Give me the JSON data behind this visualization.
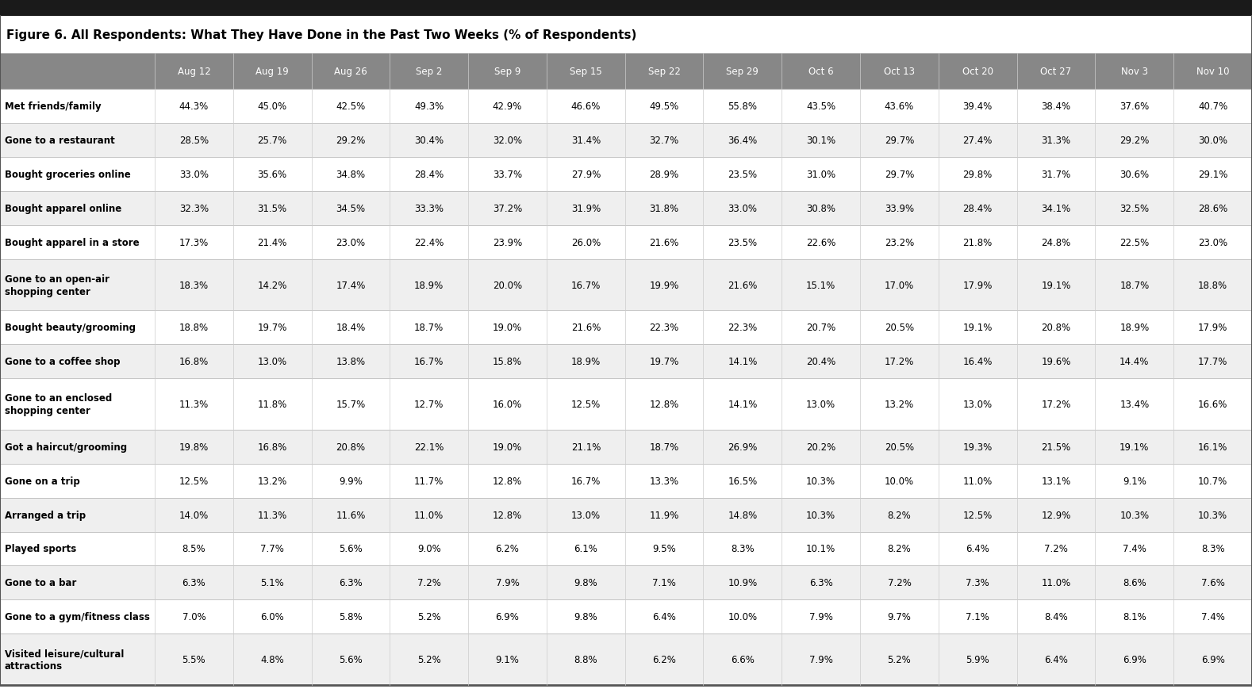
{
  "title": "Figure 6. All Respondents: What They Have Done in the Past Two Weeks (% of Respondents)",
  "columns": [
    "Aug 12",
    "Aug 19",
    "Aug 26",
    "Sep 2",
    "Sep 9",
    "Sep 15",
    "Sep 22",
    "Sep 29",
    "Oct 6",
    "Oct 13",
    "Oct 20",
    "Oct 27",
    "Nov 3",
    "Nov 10"
  ],
  "rows": [
    {
      "label": "Met friends/family",
      "label2": "",
      "values": [
        "44.3%",
        "45.0%",
        "42.5%",
        "49.3%",
        "42.9%",
        "46.6%",
        "49.5%",
        "55.8%",
        "43.5%",
        "43.6%",
        "39.4%",
        "38.4%",
        "37.6%",
        "40.7%"
      ]
    },
    {
      "label": "Gone to a restaurant",
      "label2": "",
      "values": [
        "28.5%",
        "25.7%",
        "29.2%",
        "30.4%",
        "32.0%",
        "31.4%",
        "32.7%",
        "36.4%",
        "30.1%",
        "29.7%",
        "27.4%",
        "31.3%",
        "29.2%",
        "30.0%"
      ]
    },
    {
      "label": "Bought groceries online",
      "label2": "",
      "values": [
        "33.0%",
        "35.6%",
        "34.8%",
        "28.4%",
        "33.7%",
        "27.9%",
        "28.9%",
        "23.5%",
        "31.0%",
        "29.7%",
        "29.8%",
        "31.7%",
        "30.6%",
        "29.1%"
      ]
    },
    {
      "label": "Bought apparel online",
      "label2": "",
      "values": [
        "32.3%",
        "31.5%",
        "34.5%",
        "33.3%",
        "37.2%",
        "31.9%",
        "31.8%",
        "33.0%",
        "30.8%",
        "33.9%",
        "28.4%",
        "34.1%",
        "32.5%",
        "28.6%"
      ]
    },
    {
      "label": "Bought apparel in a store",
      "label2": "",
      "values": [
        "17.3%",
        "21.4%",
        "23.0%",
        "22.4%",
        "23.9%",
        "26.0%",
        "21.6%",
        "23.5%",
        "22.6%",
        "23.2%",
        "21.8%",
        "24.8%",
        "22.5%",
        "23.0%"
      ]
    },
    {
      "label": "Gone to an open-air",
      "label2": "shopping center",
      "values": [
        "18.3%",
        "14.2%",
        "17.4%",
        "18.9%",
        "20.0%",
        "16.7%",
        "19.9%",
        "21.6%",
        "15.1%",
        "17.0%",
        "17.9%",
        "19.1%",
        "18.7%",
        "18.8%"
      ]
    },
    {
      "label": "Bought beauty/grooming",
      "label2": "",
      "values": [
        "18.8%",
        "19.7%",
        "18.4%",
        "18.7%",
        "19.0%",
        "21.6%",
        "22.3%",
        "22.3%",
        "20.7%",
        "20.5%",
        "19.1%",
        "20.8%",
        "18.9%",
        "17.9%"
      ]
    },
    {
      "label": "Gone to a coffee shop",
      "label2": "",
      "values": [
        "16.8%",
        "13.0%",
        "13.8%",
        "16.7%",
        "15.8%",
        "18.9%",
        "19.7%",
        "14.1%",
        "20.4%",
        "17.2%",
        "16.4%",
        "19.6%",
        "14.4%",
        "17.7%"
      ]
    },
    {
      "label": "Gone to an enclosed",
      "label2": "shopping center",
      "values": [
        "11.3%",
        "11.8%",
        "15.7%",
        "12.7%",
        "16.0%",
        "12.5%",
        "12.8%",
        "14.1%",
        "13.0%",
        "13.2%",
        "13.0%",
        "17.2%",
        "13.4%",
        "16.6%"
      ]
    },
    {
      "label": "Got a haircut/grooming",
      "label2": "",
      "values": [
        "19.8%",
        "16.8%",
        "20.8%",
        "22.1%",
        "19.0%",
        "21.1%",
        "18.7%",
        "26.9%",
        "20.2%",
        "20.5%",
        "19.3%",
        "21.5%",
        "19.1%",
        "16.1%"
      ]
    },
    {
      "label": "Gone on a trip",
      "label2": "",
      "values": [
        "12.5%",
        "13.2%",
        "9.9%",
        "11.7%",
        "12.8%",
        "16.7%",
        "13.3%",
        "16.5%",
        "10.3%",
        "10.0%",
        "11.0%",
        "13.1%",
        "9.1%",
        "10.7%"
      ]
    },
    {
      "label": "Arranged a trip",
      "label2": "",
      "values": [
        "14.0%",
        "11.3%",
        "11.6%",
        "11.0%",
        "12.8%",
        "13.0%",
        "11.9%",
        "14.8%",
        "10.3%",
        "8.2%",
        "12.5%",
        "12.9%",
        "10.3%",
        "10.3%"
      ]
    },
    {
      "label": "Played sports",
      "label2": "",
      "values": [
        "8.5%",
        "7.7%",
        "5.6%",
        "9.0%",
        "6.2%",
        "6.1%",
        "9.5%",
        "8.3%",
        "10.1%",
        "8.2%",
        "6.4%",
        "7.2%",
        "7.4%",
        "8.3%"
      ]
    },
    {
      "label": "Gone to a bar",
      "label2": "",
      "values": [
        "6.3%",
        "5.1%",
        "6.3%",
        "7.2%",
        "7.9%",
        "9.8%",
        "7.1%",
        "10.9%",
        "6.3%",
        "7.2%",
        "7.3%",
        "11.0%",
        "8.6%",
        "7.6%"
      ]
    },
    {
      "label": "Gone to a gym/fitness class",
      "label2": "",
      "values": [
        "7.0%",
        "6.0%",
        "5.8%",
        "5.2%",
        "6.9%",
        "9.8%",
        "6.4%",
        "10.0%",
        "7.9%",
        "9.7%",
        "7.1%",
        "8.4%",
        "8.1%",
        "7.4%"
      ]
    },
    {
      "label": "Visited leisure/cultural",
      "label2": "attractions",
      "values": [
        "5.5%",
        "4.8%",
        "5.6%",
        "5.2%",
        "9.1%",
        "8.8%",
        "6.2%",
        "6.6%",
        "7.9%",
        "5.2%",
        "5.9%",
        "6.4%",
        "6.9%",
        "6.9%"
      ]
    }
  ],
  "header_bg": "#878787",
  "header_fg": "#ffffff",
  "title_fg": "#000000",
  "cell_fontsize": 8.5,
  "header_fontsize": 8.5,
  "label_fontsize": 8.5,
  "title_fontsize": 11,
  "multiline_rows": [
    5,
    8,
    15
  ]
}
